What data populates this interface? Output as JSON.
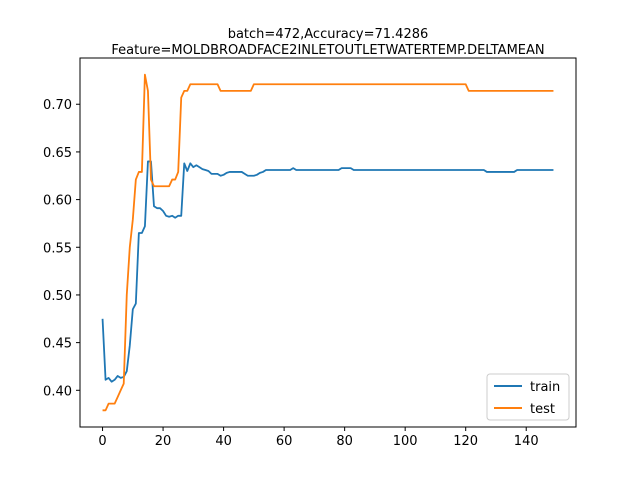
{
  "chart_data": {
    "type": "line",
    "title_line1": "batch=472,Accuracy=71.4286",
    "title_line2": "Feature=MOLDBROADFACE2INLETOUTLETWATERTEMP.DELTAMEAN",
    "xlabel": "",
    "ylabel": "",
    "xlim": [
      -7.45,
      156.45
    ],
    "ylim": [
      0.3615,
      0.7485
    ],
    "xticks": [
      0,
      20,
      40,
      60,
      80,
      100,
      120,
      140
    ],
    "xtick_labels": [
      "0",
      "20",
      "40",
      "60",
      "80",
      "100",
      "120",
      "140"
    ],
    "yticks": [
      0.4,
      0.45,
      0.5,
      0.55,
      0.6,
      0.65,
      0.7
    ],
    "ytick_labels": [
      "0.40",
      "0.45",
      "0.50",
      "0.55",
      "0.60",
      "0.65",
      "0.70"
    ],
    "grid": false,
    "legend_position": "lower-right",
    "series": [
      {
        "name": "train",
        "color": "#1f77b4",
        "points": [
          [
            0,
            0.475
          ],
          [
            1,
            0.411
          ],
          [
            2,
            0.413
          ],
          [
            3,
            0.409
          ],
          [
            4,
            0.411
          ],
          [
            5,
            0.415
          ],
          [
            6,
            0.413
          ],
          [
            7,
            0.414
          ],
          [
            8,
            0.42
          ],
          [
            9,
            0.447
          ],
          [
            10,
            0.485
          ],
          [
            11,
            0.491
          ],
          [
            12,
            0.565
          ],
          [
            13,
            0.565
          ],
          [
            14,
            0.572
          ],
          [
            15,
            0.64
          ],
          [
            16,
            0.64
          ],
          [
            17,
            0.593
          ],
          [
            18,
            0.591
          ],
          [
            19,
            0.591
          ],
          [
            20,
            0.588
          ],
          [
            21,
            0.583
          ],
          [
            22,
            0.582
          ],
          [
            23,
            0.583
          ],
          [
            24,
            0.581
          ],
          [
            25,
            0.583
          ],
          [
            26,
            0.583
          ],
          [
            27,
            0.638
          ],
          [
            28,
            0.63
          ],
          [
            29,
            0.638
          ],
          [
            30,
            0.634
          ],
          [
            31,
            0.636
          ],
          [
            32,
            0.634
          ],
          [
            33,
            0.632
          ],
          [
            34,
            0.631
          ],
          [
            35,
            0.63
          ],
          [
            36,
            0.627
          ],
          [
            37,
            0.627
          ],
          [
            38,
            0.627
          ],
          [
            39,
            0.625
          ],
          [
            40,
            0.626
          ],
          [
            41,
            0.628
          ],
          [
            42,
            0.629
          ],
          [
            43,
            0.629
          ],
          [
            44,
            0.629
          ],
          [
            45,
            0.629
          ],
          [
            46,
            0.629
          ],
          [
            47,
            0.627
          ],
          [
            48,
            0.625
          ],
          [
            49,
            0.625
          ],
          [
            50,
            0.625
          ],
          [
            51,
            0.626
          ],
          [
            52,
            0.628
          ],
          [
            53,
            0.629
          ],
          [
            54,
            0.631
          ],
          [
            55,
            0.631
          ],
          [
            56,
            0.631
          ],
          [
            57,
            0.631
          ],
          [
            58,
            0.631
          ],
          [
            59,
            0.631
          ],
          [
            60,
            0.631
          ],
          [
            61,
            0.631
          ],
          [
            62,
            0.631
          ],
          [
            63,
            0.633
          ],
          [
            64,
            0.631
          ],
          [
            65,
            0.631
          ],
          [
            70,
            0.631
          ],
          [
            75,
            0.631
          ],
          [
            78,
            0.631
          ],
          [
            79,
            0.633
          ],
          [
            80,
            0.633
          ],
          [
            81,
            0.633
          ],
          [
            82,
            0.633
          ],
          [
            83,
            0.631
          ],
          [
            90,
            0.631
          ],
          [
            100,
            0.631
          ],
          [
            110,
            0.631
          ],
          [
            120,
            0.631
          ],
          [
            126,
            0.631
          ],
          [
            127,
            0.629
          ],
          [
            130,
            0.629
          ],
          [
            135,
            0.629
          ],
          [
            136,
            0.629
          ],
          [
            137,
            0.631
          ],
          [
            140,
            0.631
          ],
          [
            149,
            0.631
          ]
        ]
      },
      {
        "name": "test",
        "color": "#ff7f0e",
        "points": [
          [
            0,
            0.379
          ],
          [
            1,
            0.379
          ],
          [
            2,
            0.386
          ],
          [
            3,
            0.386
          ],
          [
            4,
            0.386
          ],
          [
            5,
            0.393
          ],
          [
            6,
            0.4
          ],
          [
            7,
            0.407
          ],
          [
            8,
            0.5
          ],
          [
            9,
            0.55
          ],
          [
            10,
            0.579
          ],
          [
            11,
            0.621
          ],
          [
            12,
            0.629
          ],
          [
            13,
            0.629
          ],
          [
            14,
            0.731
          ],
          [
            15,
            0.714
          ],
          [
            16,
            0.621
          ],
          [
            17,
            0.614
          ],
          [
            18,
            0.614
          ],
          [
            19,
            0.614
          ],
          [
            20,
            0.614
          ],
          [
            21,
            0.614
          ],
          [
            22,
            0.614
          ],
          [
            23,
            0.621
          ],
          [
            24,
            0.621
          ],
          [
            25,
            0.629
          ],
          [
            26,
            0.707
          ],
          [
            27,
            0.714
          ],
          [
            28,
            0.714
          ],
          [
            29,
            0.721
          ],
          [
            30,
            0.721
          ],
          [
            35,
            0.721
          ],
          [
            38,
            0.721
          ],
          [
            39,
            0.714
          ],
          [
            40,
            0.714
          ],
          [
            45,
            0.714
          ],
          [
            49,
            0.714
          ],
          [
            50,
            0.721
          ],
          [
            55,
            0.721
          ],
          [
            60,
            0.721
          ],
          [
            70,
            0.721
          ],
          [
            80,
            0.721
          ],
          [
            90,
            0.721
          ],
          [
            100,
            0.721
          ],
          [
            110,
            0.721
          ],
          [
            119,
            0.721
          ],
          [
            120,
            0.721
          ],
          [
            121,
            0.714
          ],
          [
            130,
            0.714
          ],
          [
            140,
            0.714
          ],
          [
            149,
            0.714
          ]
        ]
      }
    ]
  }
}
